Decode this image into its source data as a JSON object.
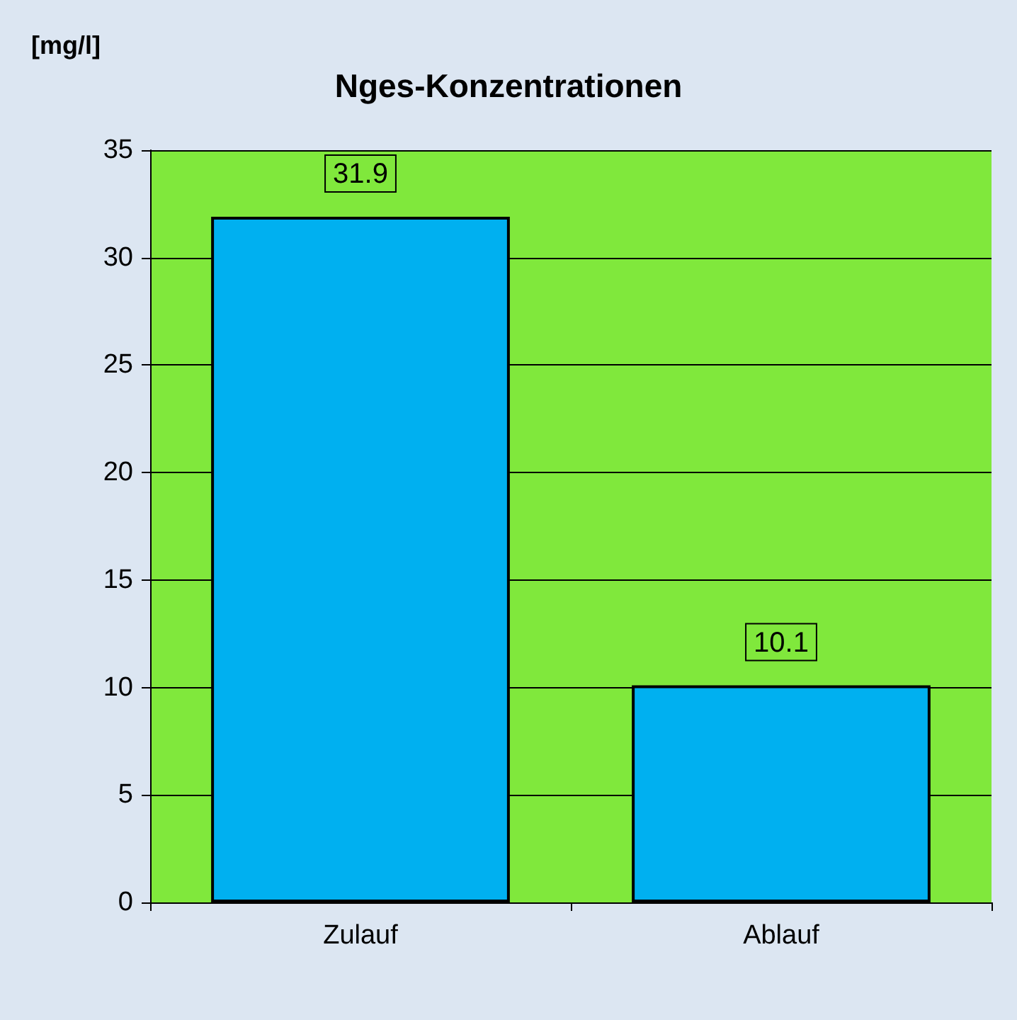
{
  "chart_data": {
    "type": "bar",
    "title": "Nges-Konzentrationen",
    "ylabel": "[mg/l]",
    "categories": [
      "Zulauf",
      "Ablauf"
    ],
    "values": [
      31.9,
      10.1
    ],
    "color": "#00b0f0",
    "ylim": [
      0,
      35
    ],
    "yticks": [
      0,
      5,
      10,
      15,
      20,
      25,
      30,
      35
    ],
    "grid": "y",
    "data_labels": true
  }
}
